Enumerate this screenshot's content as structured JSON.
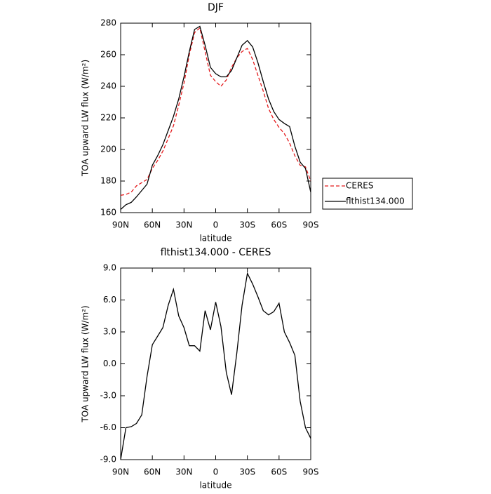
{
  "chart_data": [
    {
      "type": "line",
      "title": "DJF",
      "xlabel": "latitude",
      "ylabel": "TOA upward LW flux (W/m²)",
      "x": [
        90,
        85,
        80,
        75,
        70,
        65,
        60,
        55,
        50,
        45,
        40,
        35,
        30,
        25,
        20,
        15,
        10,
        5,
        0,
        -5,
        -10,
        -15,
        -20,
        -25,
        -30,
        -35,
        -40,
        -45,
        -50,
        -55,
        -60,
        -65,
        -70,
        -75,
        -80,
        -85,
        -90
      ],
      "series": [
        {
          "name": "CERES",
          "color": "#e41a1c",
          "line_style": "dashed",
          "values": [
            171,
            171.5,
            173,
            177,
            179,
            181,
            188,
            193,
            199,
            207,
            215,
            228,
            242,
            260,
            274,
            277,
            262,
            247,
            243,
            240,
            244,
            252,
            258,
            262,
            264,
            257,
            247,
            237,
            226,
            219,
            214,
            210,
            204,
            196,
            190,
            189,
            180
          ]
        },
        {
          "name": "flthist134.000",
          "color": "#000000",
          "line_style": "solid",
          "values": [
            162,
            165,
            166.5,
            170,
            174,
            178,
            190,
            196,
            203,
            212,
            221,
            232,
            246,
            262,
            276,
            278,
            266,
            252,
            248,
            246,
            246,
            250,
            258,
            266,
            269,
            265,
            255,
            243,
            232,
            224,
            219,
            216.5,
            214.5,
            202,
            192,
            188,
            173
          ]
        }
      ],
      "xlim": [
        90,
        -90
      ],
      "xticks": [
        {
          "value": 90,
          "label": "90N"
        },
        {
          "value": 60,
          "label": "60N"
        },
        {
          "value": 30,
          "label": "30N"
        },
        0,
        {
          "value": -30,
          "label": "30S"
        },
        {
          "value": -60,
          "label": "60S"
        },
        {
          "value": -90,
          "label": "90S"
        }
      ],
      "ylim": [
        160,
        280
      ],
      "yticks": [
        160,
        180,
        200,
        220,
        240,
        260,
        280
      ],
      "legend": "outside-right"
    },
    {
      "type": "line",
      "title": "flthist134.000 - CERES",
      "xlabel": "latitude",
      "ylabel": "TOA upward LW flux (W/m²)",
      "x": [
        90,
        85,
        80,
        75,
        70,
        65,
        60,
        55,
        50,
        45,
        40,
        35,
        30,
        25,
        20,
        15,
        10,
        5,
        0,
        -5,
        -10,
        -15,
        -20,
        -25,
        -30,
        -35,
        -40,
        -45,
        -50,
        -55,
        -60,
        -65,
        -70,
        -75,
        -80,
        -85,
        -90
      ],
      "series": [
        {
          "color": "#000000",
          "line_style": "solid",
          "values": [
            -9,
            -6,
            -5.9,
            -5.6,
            -4.8,
            -1.2,
            1.8,
            2.6,
            3.4,
            5.5,
            7,
            4.5,
            3.4,
            1.7,
            1.7,
            1.2,
            5,
            3.2,
            5.8,
            3.5,
            -0.8,
            -2.9,
            1,
            5.5,
            8.5,
            7.5,
            6.3,
            5,
            4.6,
            4.9,
            5.7,
            3,
            2,
            0.8,
            -3.5,
            -6,
            -7
          ]
        }
      ],
      "xlim": [
        90,
        -90
      ],
      "xticks": [
        {
          "value": 90,
          "label": "90N"
        },
        {
          "value": 60,
          "label": "60N"
        },
        {
          "value": 30,
          "label": "30N"
        },
        0,
        {
          "value": -30,
          "label": "30S"
        },
        {
          "value": -60,
          "label": "60S"
        },
        {
          "value": -90,
          "label": "90S"
        }
      ],
      "ylim": [
        -9,
        9
      ],
      "yticks": [
        {
          "value": -9,
          "label": "-9.0"
        },
        {
          "value": -6,
          "label": "-6.0"
        },
        {
          "value": -3,
          "label": "-3.0"
        },
        {
          "value": 0,
          "label": "0.0"
        },
        {
          "value": 3,
          "label": "3.0"
        },
        {
          "value": 6,
          "label": "6.0"
        },
        {
          "value": 9,
          "label": "9.0"
        }
      ]
    }
  ]
}
